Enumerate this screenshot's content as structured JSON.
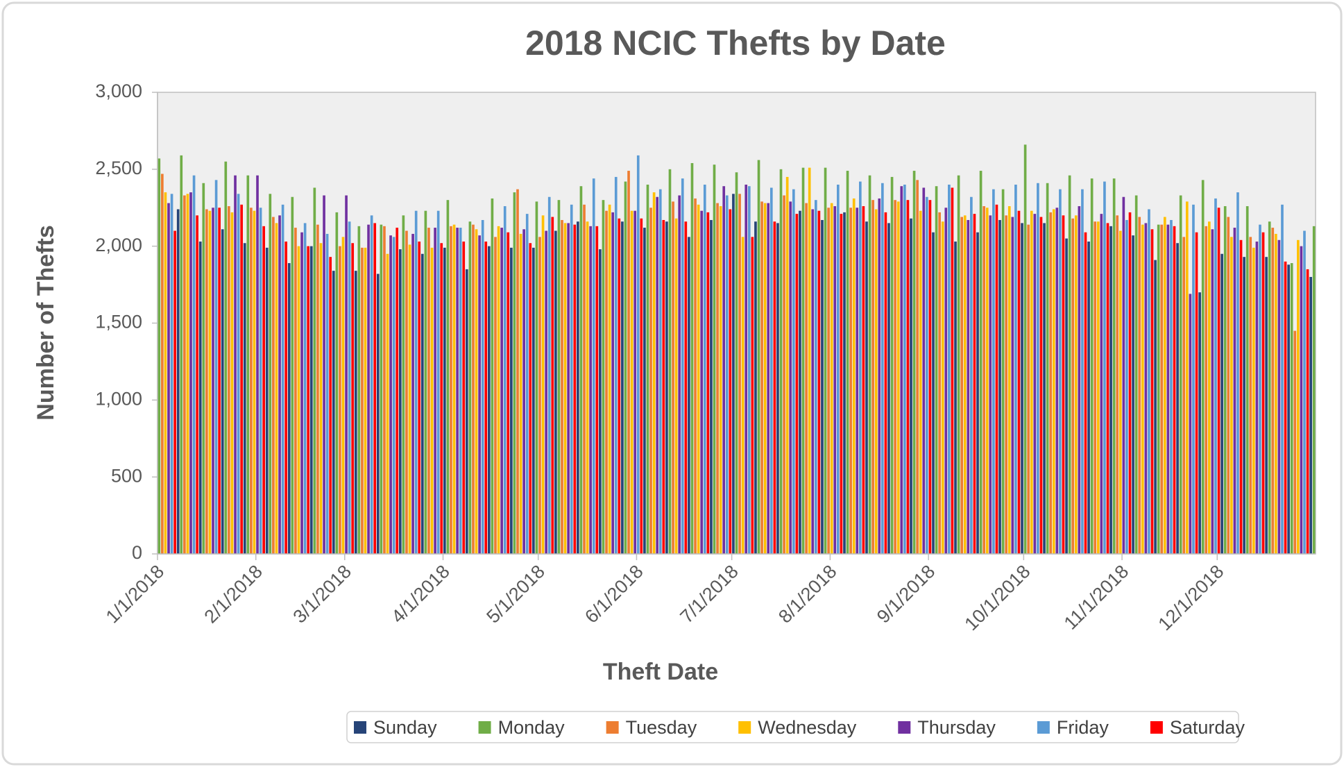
{
  "chart_data": {
    "type": "bar",
    "title": "2018 NCIC Thefts by Date",
    "x_label": "Theft Date",
    "y_label": "Number of Thefts",
    "xlim": [
      "1/1/2018",
      "12/31/2018"
    ],
    "xticks": [
      "1/1/2018",
      "2/1/2018",
      "3/1/2018",
      "4/1/2018",
      "5/1/2018",
      "6/1/2018",
      "7/1/2018",
      "8/1/2018",
      "9/1/2018",
      "10/1/2018",
      "11/1/2018",
      "12/1/2018"
    ],
    "ylim": [
      0,
      3000
    ],
    "yticks": [
      0,
      500,
      {
        "value": 1000,
        "label": "1,000"
      },
      {
        "value": 1500,
        "label": "1,500"
      },
      {
        "value": 2000,
        "label": "2,000"
      },
      {
        "value": 2500,
        "label": "2,500"
      },
      {
        "value": 3000,
        "label": "3,000"
      }
    ],
    "legend": "bottom",
    "series": [
      {
        "name": "Sunday",
        "color": "#264478",
        "x": [
          "1/7/2018",
          "1/14/2018",
          "1/21/2018",
          "1/28/2018",
          "2/4/2018",
          "2/11/2018",
          "2/18/2018",
          "2/25/2018",
          "3/4/2018",
          "3/11/2018",
          "3/18/2018",
          "3/25/2018",
          "4/1/2018",
          "4/8/2018",
          "4/15/2018",
          "4/22/2018",
          "4/29/2018",
          "5/6/2018",
          "5/13/2018",
          "5/20/2018",
          "5/27/2018",
          "6/3/2018",
          "6/10/2018",
          "6/17/2018",
          "6/24/2018",
          "7/1/2018",
          "7/8/2018",
          "7/15/2018",
          "7/22/2018",
          "7/29/2018",
          "8/5/2018",
          "8/12/2018",
          "8/19/2018",
          "8/26/2018",
          "9/2/2018",
          "9/9/2018",
          "9/16/2018",
          "9/23/2018",
          "9/30/2018",
          "10/7/2018",
          "10/14/2018",
          "10/21/2018",
          "10/28/2018",
          "11/4/2018",
          "11/11/2018",
          "11/18/2018",
          "11/25/2018",
          "12/2/2018",
          "12/9/2018",
          "12/16/2018",
          "12/23/2018",
          "12/30/2018"
        ],
        "values": [
          2240,
          2030,
          2110,
          2020,
          1990,
          1890,
          2000,
          1840,
          1840,
          1820,
          1980,
          1950,
          1990,
          1850,
          2000,
          1990,
          1990,
          2100,
          2160,
          1980,
          2160,
          2120,
          2160,
          2060,
          2170,
          2340,
          2160,
          2150,
          2230,
          2170,
          2220,
          2160,
          2150,
          2180,
          2090,
          2030,
          2090,
          2170,
          2150,
          2150,
          2050,
          2030,
          2130,
          2070,
          1910,
          2020,
          1700,
          1950,
          1930,
          1930,
          1880,
          1800
        ]
      },
      {
        "name": "Monday",
        "color": "#70ad47",
        "x": [
          "1/1/2018",
          "1/8/2018",
          "1/15/2018",
          "1/22/2018",
          "1/29/2018",
          "2/5/2018",
          "2/12/2018",
          "2/19/2018",
          "2/26/2018",
          "3/5/2018",
          "3/12/2018",
          "3/19/2018",
          "3/26/2018",
          "4/2/2018",
          "4/9/2018",
          "4/16/2018",
          "4/23/2018",
          "4/30/2018",
          "5/7/2018",
          "5/14/2018",
          "5/21/2018",
          "5/28/2018",
          "6/4/2018",
          "6/11/2018",
          "6/18/2018",
          "6/25/2018",
          "7/2/2018",
          "7/9/2018",
          "7/16/2018",
          "7/23/2018",
          "7/30/2018",
          "8/6/2018",
          "8/13/2018",
          "8/20/2018",
          "8/27/2018",
          "9/3/2018",
          "9/10/2018",
          "9/17/2018",
          "9/24/2018",
          "10/1/2018",
          "10/8/2018",
          "10/15/2018",
          "10/22/2018",
          "10/29/2018",
          "11/5/2018",
          "11/12/2018",
          "11/19/2018",
          "11/26/2018",
          "12/3/2018",
          "12/10/2018",
          "12/17/2018",
          "12/24/2018",
          "12/31/2018"
        ],
        "values": [
          2570,
          2590,
          2410,
          2550,
          2460,
          2340,
          2320,
          2380,
          2220,
          2130,
          2140,
          2200,
          2230,
          2300,
          2160,
          2310,
          2350,
          2290,
          2300,
          2390,
          2300,
          2420,
          2400,
          2500,
          2540,
          2530,
          2480,
          2560,
          2500,
          2510,
          2510,
          2490,
          2460,
          2450,
          2490,
          2390,
          2460,
          2490,
          2370,
          2660,
          2410,
          2460,
          2440,
          2440,
          2330,
          2140,
          2330,
          2430,
          2260,
          2260,
          2160,
          1890,
          2130
        ]
      },
      {
        "name": "Tuesday",
        "color": "#ed7d31",
        "x": [
          "1/2/2018",
          "1/9/2018",
          "1/16/2018",
          "1/23/2018",
          "1/30/2018",
          "2/6/2018",
          "2/13/2018",
          "2/20/2018",
          "2/27/2018",
          "3/6/2018",
          "3/13/2018",
          "3/20/2018",
          "3/27/2018",
          "4/3/2018",
          "4/10/2018",
          "4/17/2018",
          "4/24/2018",
          "5/1/2018",
          "5/8/2018",
          "5/15/2018",
          "5/22/2018",
          "5/29/2018",
          "6/5/2018",
          "6/12/2018",
          "6/19/2018",
          "6/26/2018",
          "7/3/2018",
          "7/10/2018",
          "7/17/2018",
          "7/24/2018",
          "7/31/2018",
          "8/7/2018",
          "8/14/2018",
          "8/21/2018",
          "8/28/2018",
          "9/4/2018",
          "9/11/2018",
          "9/18/2018",
          "9/25/2018",
          "10/2/2018",
          "10/9/2018",
          "10/16/2018",
          "10/23/2018",
          "10/30/2018",
          "11/6/2018",
          "11/13/2018",
          "11/20/2018",
          "11/27/2018",
          "12/4/2018",
          "12/11/2018",
          "12/18/2018",
          "12/25/2018"
        ],
        "values": [
          2470,
          2330,
          2240,
          2260,
          2250,
          2190,
          2120,
          2140,
          2000,
          1990,
          2130,
          2100,
          2120,
          2130,
          2140,
          2060,
          2370,
          2060,
          2170,
          2270,
          2230,
          2490,
          2250,
          2290,
          2310,
          2280,
          2340,
          2290,
          2330,
          2280,
          2250,
          2250,
          2300,
          2300,
          2430,
          2220,
          2190,
          2260,
          2200,
          2140,
          2220,
          2180,
          2160,
          2200,
          2190,
          2140,
          2060,
          2130,
          2190,
          2060,
          2120,
          1450
        ]
      },
      {
        "name": "Wednesday",
        "color": "#ffc000",
        "x": [
          "1/3/2018",
          "1/10/2018",
          "1/17/2018",
          "1/24/2018",
          "1/31/2018",
          "2/7/2018",
          "2/14/2018",
          "2/21/2018",
          "2/28/2018",
          "3/7/2018",
          "3/14/2018",
          "3/21/2018",
          "3/28/2018",
          "4/4/2018",
          "4/11/2018",
          "4/18/2018",
          "4/25/2018",
          "5/2/2018",
          "5/9/2018",
          "5/16/2018",
          "5/23/2018",
          "5/30/2018",
          "6/6/2018",
          "6/13/2018",
          "6/20/2018",
          "6/27/2018",
          "7/4/2018",
          "7/11/2018",
          "7/18/2018",
          "7/25/2018",
          "8/1/2018",
          "8/8/2018",
          "8/15/2018",
          "8/22/2018",
          "8/29/2018",
          "9/5/2018",
          "9/12/2018",
          "9/19/2018",
          "9/26/2018",
          "10/3/2018",
          "10/10/2018",
          "10/17/2018",
          "10/24/2018",
          "10/31/2018",
          "11/7/2018",
          "11/14/2018",
          "11/21/2018",
          "11/28/2018",
          "12/5/2018",
          "12/12/2018",
          "12/19/2018",
          "12/26/2018"
        ],
        "values": [
          2350,
          2340,
          2230,
          2220,
          2230,
          2150,
          2000,
          2020,
          2060,
          1990,
          1950,
          2010,
          1990,
          2140,
          2110,
          2130,
          2080,
          2200,
          2150,
          2160,
          2270,
          2230,
          2350,
          2180,
          2270,
          2260,
          2060,
          2280,
          2450,
          2510,
          2280,
          2310,
          2240,
          2290,
          2230,
          2160,
          2200,
          2250,
          2260,
          2230,
          2240,
          2200,
          2160,
          2100,
          2140,
          2190,
          2290,
          2160,
          2060,
          1990,
          2080,
          2040
        ]
      },
      {
        "name": "Thursday",
        "color": "#7030a0",
        "x": [
          "1/4/2018",
          "1/11/2018",
          "1/18/2018",
          "1/25/2018",
          "2/1/2018",
          "2/8/2018",
          "2/15/2018",
          "2/22/2018",
          "3/1/2018",
          "3/8/2018",
          "3/15/2018",
          "3/22/2018",
          "3/29/2018",
          "4/5/2018",
          "4/12/2018",
          "4/19/2018",
          "4/26/2018",
          "5/3/2018",
          "5/10/2018",
          "5/17/2018",
          "5/24/2018",
          "5/31/2018",
          "6/7/2018",
          "6/14/2018",
          "6/21/2018",
          "6/28/2018",
          "7/5/2018",
          "7/12/2018",
          "7/19/2018",
          "7/26/2018",
          "8/2/2018",
          "8/9/2018",
          "8/16/2018",
          "8/23/2018",
          "8/30/2018",
          "9/6/2018",
          "9/13/2018",
          "9/20/2018",
          "9/27/2018",
          "10/4/2018",
          "10/11/2018",
          "10/18/2018",
          "10/25/2018",
          "11/1/2018",
          "11/8/2018",
          "11/15/2018",
          "11/22/2018",
          "11/29/2018",
          "12/6/2018",
          "12/13/2018",
          "12/20/2018",
          "12/27/2018"
        ],
        "values": [
          2280,
          2350,
          2250,
          2460,
          2460,
          2200,
          2090,
          2330,
          2330,
          2140,
          2070,
          2080,
          2120,
          2120,
          2070,
          2120,
          2110,
          2100,
          2150,
          2130,
          2220,
          2230,
          2320,
          2330,
          2230,
          2390,
          2400,
          2280,
          2290,
          2240,
          2260,
          2250,
          2310,
          2390,
          2380,
          2250,
          2170,
          2200,
          2190,
          2210,
          2250,
          2260,
          2210,
          2320,
          2150,
          2140,
          1690,
          2110,
          2120,
          2030,
          2040,
          2000
        ]
      },
      {
        "name": "Friday",
        "color": "#5b9bd5",
        "x": [
          "1/5/2018",
          "1/12/2018",
          "1/19/2018",
          "1/26/2018",
          "2/2/2018",
          "2/9/2018",
          "2/16/2018",
          "2/23/2018",
          "3/2/2018",
          "3/9/2018",
          "3/16/2018",
          "3/23/2018",
          "3/30/2018",
          "4/6/2018",
          "4/13/2018",
          "4/20/2018",
          "4/27/2018",
          "5/4/2018",
          "5/11/2018",
          "5/18/2018",
          "5/25/2018",
          "6/1/2018",
          "6/8/2018",
          "6/15/2018",
          "6/22/2018",
          "6/29/2018",
          "7/6/2018",
          "7/13/2018",
          "7/20/2018",
          "7/27/2018",
          "8/3/2018",
          "8/10/2018",
          "8/17/2018",
          "8/24/2018",
          "8/31/2018",
          "9/7/2018",
          "9/14/2018",
          "9/21/2018",
          "9/28/2018",
          "10/5/2018",
          "10/12/2018",
          "10/19/2018",
          "10/26/2018",
          "11/2/2018",
          "11/9/2018",
          "11/16/2018",
          "11/23/2018",
          "11/30/2018",
          "12/7/2018",
          "12/14/2018",
          "12/21/2018",
          "12/28/2018"
        ],
        "values": [
          2340,
          2460,
          2430,
          2340,
          2250,
          2270,
          2150,
          2080,
          2160,
          2200,
          2060,
          2230,
          2230,
          2120,
          2170,
          2260,
          2210,
          2320,
          2270,
          2440,
          2450,
          2590,
          2370,
          2440,
          2400,
          2330,
          2390,
          2380,
          2370,
          2300,
          2400,
          2420,
          2410,
          2400,
          2320,
          2400,
          2320,
          2370,
          2400,
          2410,
          2370,
          2370,
          2420,
          2170,
          2240,
          2170,
          2270,
          2310,
          2350,
          2140,
          2270,
          2100
        ]
      },
      {
        "name": "Saturday",
        "color": "#ff0000",
        "x": [
          "1/6/2018",
          "1/13/2018",
          "1/20/2018",
          "1/27/2018",
          "2/3/2018",
          "2/10/2018",
          "2/17/2018",
          "2/24/2018",
          "3/3/2018",
          "3/10/2018",
          "3/17/2018",
          "3/24/2018",
          "3/31/2018",
          "4/7/2018",
          "4/14/2018",
          "4/21/2018",
          "4/28/2018",
          "5/5/2018",
          "5/12/2018",
          "5/19/2018",
          "5/26/2018",
          "6/2/2018",
          "6/9/2018",
          "6/16/2018",
          "6/23/2018",
          "6/30/2018",
          "7/7/2018",
          "7/14/2018",
          "7/21/2018",
          "7/28/2018",
          "8/4/2018",
          "8/11/2018",
          "8/18/2018",
          "8/25/2018",
          "9/1/2018",
          "9/8/2018",
          "9/15/2018",
          "9/22/2018",
          "9/29/2018",
          "10/6/2018",
          "10/13/2018",
          "10/20/2018",
          "10/27/2018",
          "11/3/2018",
          "11/10/2018",
          "11/17/2018",
          "11/24/2018",
          "12/1/2018",
          "12/8/2018",
          "12/15/2018",
          "12/22/2018",
          "12/29/2018"
        ],
        "values": [
          2100,
          2200,
          2250,
          2270,
          2130,
          2030,
          2000,
          1930,
          2020,
          2150,
          2120,
          2030,
          2020,
          2030,
          2030,
          2090,
          2020,
          2190,
          2140,
          2130,
          2180,
          2180,
          2170,
          2160,
          2220,
          2240,
          2060,
          2160,
          2210,
          2230,
          2210,
          2260,
          2220,
          2300,
          2300,
          2380,
          2210,
          2270,
          2230,
          2190,
          2200,
          2090,
          2150,
          2220,
          2110,
          2130,
          2090,
          2250,
          2040,
          2090,
          1900,
          1850
        ]
      }
    ]
  }
}
